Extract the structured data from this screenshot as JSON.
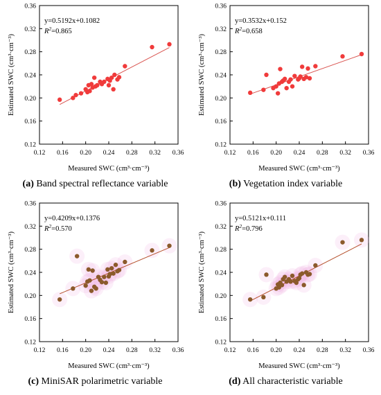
{
  "shared": {
    "xlabel": "Measured SWC (cm³·cm⁻³)",
    "ylabel": "Estimated SWC (cm³·cm⁻³)",
    "xticks": [
      "0.12",
      "0.16",
      "0.20",
      "0.24",
      "0.28",
      "0.32",
      "0.36"
    ],
    "yticks": [
      "0.12",
      "0.16",
      "0.20",
      "0.24",
      "0.28",
      "0.32",
      "0.36"
    ],
    "r2_prefix": "R",
    "r2_sup": "2"
  },
  "panels": [
    {
      "letter": "(a)",
      "caption": "Band spectral reflectance variable",
      "equation": "y=0.5192x+0.1082",
      "r2": "=0.865",
      "point_color": "#f03b3b",
      "line_color": "#d9534f",
      "halo": false
    },
    {
      "letter": "(b)",
      "caption": "Vegetation index variable",
      "equation": "y=0.3532x+0.152",
      "r2": "=0.658",
      "point_color": "#f03b3b",
      "line_color": "#d9534f",
      "halo": false
    },
    {
      "letter": "(c)",
      "caption": "MiniSAR polarimetric variable",
      "equation": "y=0.4209x+0.1376",
      "r2": "=0.570",
      "point_color": "#8b5a2b",
      "line_color": "#b5502c",
      "halo": true
    },
    {
      "letter": "(d)",
      "caption": "All characteristic variable",
      "equation": "y=0.5121x+0.111",
      "r2": "=0.796",
      "point_color": "#8b5a2b",
      "line_color": "#b5502c",
      "halo": true
    }
  ],
  "chart_data": [
    {
      "type": "scatter",
      "title": "",
      "xlabel": "Measured SWC (cm³·cm⁻³)",
      "ylabel": "Estimated SWC (cm³·cm⁻³)",
      "xlim": [
        0.12,
        0.36
      ],
      "ylim": [
        0.12,
        0.36
      ],
      "grid": false,
      "fit": {
        "slope": 0.5192,
        "intercept": 0.1082,
        "r2": 0.865
      },
      "x": [
        0.155,
        0.178,
        0.183,
        0.192,
        0.2,
        0.203,
        0.205,
        0.207,
        0.21,
        0.212,
        0.215,
        0.217,
        0.22,
        0.225,
        0.228,
        0.232,
        0.238,
        0.24,
        0.242,
        0.245,
        0.248,
        0.25,
        0.255,
        0.258,
        0.268,
        0.315,
        0.345
      ],
      "y": [
        0.197,
        0.2,
        0.205,
        0.208,
        0.215,
        0.21,
        0.222,
        0.212,
        0.224,
        0.218,
        0.235,
        0.22,
        0.222,
        0.228,
        0.224,
        0.228,
        0.233,
        0.222,
        0.23,
        0.235,
        0.215,
        0.24,
        0.232,
        0.236,
        0.255,
        0.288,
        0.293
      ]
    },
    {
      "type": "scatter",
      "title": "",
      "xlabel": "Measured SWC (cm³·cm⁻³)",
      "ylabel": "Estimated SWC (cm³·cm⁻³)",
      "xlim": [
        0.12,
        0.36
      ],
      "ylim": [
        0.12,
        0.36
      ],
      "grid": false,
      "fit": {
        "slope": 0.3532,
        "intercept": 0.152,
        "r2": 0.658
      },
      "x": [
        0.155,
        0.178,
        0.183,
        0.195,
        0.2,
        0.203,
        0.205,
        0.207,
        0.21,
        0.212,
        0.215,
        0.218,
        0.222,
        0.225,
        0.228,
        0.232,
        0.238,
        0.24,
        0.242,
        0.245,
        0.248,
        0.252,
        0.255,
        0.258,
        0.268,
        0.315,
        0.348
      ],
      "y": [
        0.209,
        0.214,
        0.24,
        0.217,
        0.22,
        0.208,
        0.225,
        0.25,
        0.228,
        0.23,
        0.233,
        0.217,
        0.228,
        0.232,
        0.22,
        0.238,
        0.232,
        0.234,
        0.237,
        0.254,
        0.233,
        0.236,
        0.251,
        0.234,
        0.255,
        0.272,
        0.276
      ]
    },
    {
      "type": "scatter",
      "title": "",
      "xlabel": "Measured SWC (cm³·cm⁻³)",
      "ylabel": "Estimated SWC (cm³·cm⁻³)",
      "xlim": [
        0.12,
        0.36
      ],
      "ylim": [
        0.12,
        0.36
      ],
      "grid": false,
      "fit": {
        "slope": 0.4209,
        "intercept": 0.1376,
        "r2": 0.57
      },
      "x": [
        0.155,
        0.178,
        0.185,
        0.2,
        0.203,
        0.205,
        0.207,
        0.21,
        0.212,
        0.215,
        0.218,
        0.222,
        0.225,
        0.228,
        0.232,
        0.235,
        0.238,
        0.24,
        0.242,
        0.245,
        0.248,
        0.252,
        0.255,
        0.258,
        0.268,
        0.315,
        0.345
      ],
      "y": [
        0.193,
        0.212,
        0.268,
        0.217,
        0.224,
        0.245,
        0.226,
        0.208,
        0.243,
        0.215,
        0.212,
        0.232,
        0.227,
        0.223,
        0.232,
        0.222,
        0.245,
        0.233,
        0.237,
        0.247,
        0.238,
        0.253,
        0.242,
        0.244,
        0.258,
        0.278,
        0.286
      ]
    },
    {
      "type": "scatter",
      "title": "",
      "xlabel": "Measured SWC (cm³·cm⁻³)",
      "ylabel": "Estimated SWC (cm³·cm⁻³)",
      "xlim": [
        0.12,
        0.36
      ],
      "ylim": [
        0.12,
        0.36
      ],
      "grid": false,
      "fit": {
        "slope": 0.5121,
        "intercept": 0.111,
        "r2": 0.796
      },
      "x": [
        0.155,
        0.178,
        0.183,
        0.2,
        0.203,
        0.205,
        0.207,
        0.21,
        0.212,
        0.215,
        0.218,
        0.222,
        0.225,
        0.228,
        0.232,
        0.235,
        0.238,
        0.24,
        0.242,
        0.245,
        0.248,
        0.252,
        0.255,
        0.258,
        0.268,
        0.315,
        0.348
      ],
      "y": [
        0.193,
        0.197,
        0.236,
        0.212,
        0.219,
        0.214,
        0.222,
        0.218,
        0.228,
        0.232,
        0.224,
        0.228,
        0.224,
        0.234,
        0.225,
        0.222,
        0.228,
        0.23,
        0.236,
        0.238,
        0.218,
        0.24,
        0.236,
        0.237,
        0.252,
        0.292,
        0.296
      ]
    }
  ]
}
